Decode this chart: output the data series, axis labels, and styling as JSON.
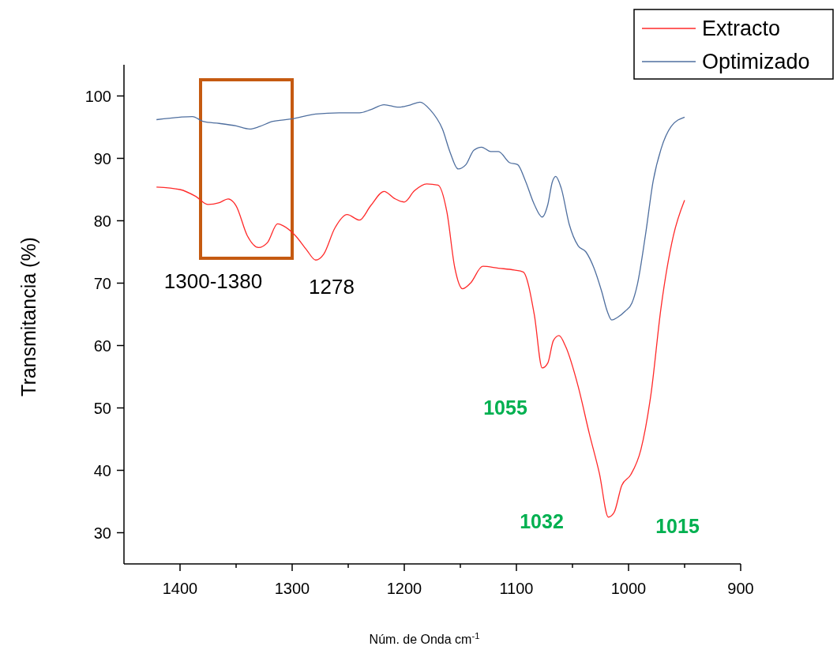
{
  "chart_data": {
    "type": "line",
    "xlabel": "Núm. de Onda cm$^{-1}$",
    "ylabel": "Transmitancia (%)",
    "xlim": [
      1450,
      900
    ],
    "ylim": [
      25,
      105
    ],
    "xticks": [
      1400,
      {
        "value": 1350,
        "label": null
      },
      1300,
      {
        "value": 1250,
        "label": null
      },
      1200,
      {
        "value": 1150,
        "label": null
      },
      1100,
      {
        "value": 1050,
        "label": null
      },
      1000,
      {
        "value": 950,
        "label": null
      },
      900
    ],
    "yticks": [
      30,
      40,
      50,
      60,
      70,
      80,
      90,
      100
    ],
    "grid": false,
    "legend": "top right",
    "marker": "none",
    "line_style": "solid",
    "series": [
      {
        "name": "Extracto",
        "color": "#ff2a2a",
        "x": [
          1421,
          1400,
          1386,
          1375,
          1365,
          1357,
          1350,
          1340,
          1330,
          1322,
          1313,
          1308,
          1297,
          1287,
          1279,
          1272,
          1262,
          1251,
          1240,
          1230,
          1218,
          1209,
          1200,
          1191,
          1180,
          1170,
          1162,
          1155,
          1148,
          1141,
          1130,
          1116,
          1102,
          1094,
          1084,
          1077,
          1072,
          1067,
          1062,
          1056,
          1045,
          1035,
          1026,
          1018,
          1013,
          1006,
          998,
          989,
          980,
          971,
          960,
          950
        ],
        "values": [
          85.4,
          85.0,
          83.9,
          82.6,
          82.9,
          83.5,
          82.4,
          77.6,
          75.7,
          76.5,
          79.5,
          79.2,
          77.6,
          75.3,
          73.7,
          74.6,
          78.8,
          81.0,
          80.1,
          82.4,
          84.7,
          83.6,
          83.0,
          84.8,
          85.9,
          85.7,
          81.4,
          72.5,
          69.1,
          70.0,
          72.7,
          72.4,
          72.1,
          71.8,
          64.9,
          56.4,
          57.2,
          60.8,
          61.6,
          59.8,
          53.5,
          45.9,
          39.5,
          32.5,
          33.2,
          37.6,
          39.3,
          43.3,
          52.2,
          66.1,
          77.6,
          83.3
        ]
      },
      {
        "name": "Optimizado",
        "color": "#4f6f9f",
        "x": [
          1421,
          1400,
          1389,
          1379,
          1365,
          1350,
          1338,
          1329,
          1318,
          1301,
          1279,
          1258,
          1240,
          1230,
          1218,
          1205,
          1194,
          1186,
          1177,
          1166,
          1159,
          1152,
          1145,
          1138,
          1131,
          1123,
          1116,
          1106,
          1099,
          1092,
          1084,
          1077,
          1072,
          1068,
          1065,
          1060,
          1053,
          1045,
          1038,
          1031,
          1024,
          1019,
          1015,
          1010,
          1003,
          997,
          992,
          985,
          978,
          971,
          962,
          950
        ],
        "values": [
          96.2,
          96.6,
          96.7,
          95.9,
          95.6,
          95.2,
          94.7,
          95.1,
          95.9,
          96.3,
          97.1,
          97.3,
          97.3,
          97.8,
          98.6,
          98.2,
          98.6,
          99.0,
          97.8,
          94.7,
          90.9,
          88.3,
          89.0,
          91.3,
          91.8,
          91.1,
          91.1,
          89.3,
          89.0,
          86.4,
          82.6,
          80.6,
          82.6,
          86.2,
          87.1,
          85.2,
          79.5,
          76.0,
          75.0,
          72.5,
          68.7,
          65.5,
          64.1,
          64.5,
          65.5,
          66.8,
          69.9,
          77.6,
          86.4,
          91.5,
          95.1,
          96.6
        ]
      }
    ],
    "annotations": [
      "1300-1380",
      "1278",
      "1055",
      "1032",
      "1015"
    ]
  }
}
